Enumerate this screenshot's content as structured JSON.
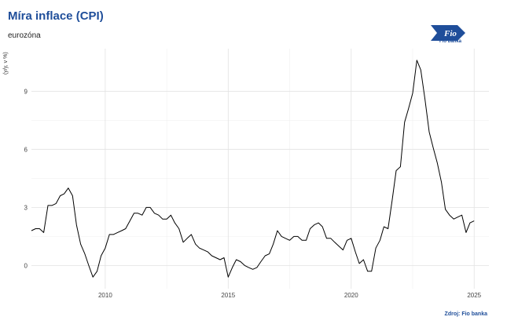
{
  "header": {
    "title": "Míra inflace (CPI)",
    "subtitle": "eurozóna"
  },
  "logo": {
    "text": "Fio",
    "caption": "Fio banka"
  },
  "footer": {
    "source": "Zdroj: Fio banka"
  },
  "chart_data": {
    "type": "line",
    "title": "Míra inflace (CPI)",
    "subtitle": "eurozóna",
    "ylabel": "(y/y, v %)",
    "xlabel": "",
    "xlim": [
      2007.0,
      2025.6
    ],
    "ylim": [
      -1.2,
      11.2
    ],
    "x_ticks": [
      2010,
      2015,
      2020,
      2025
    ],
    "y_ticks": [
      0,
      3,
      6,
      9
    ],
    "grid": true,
    "line_color": "#000000",
    "series": [
      {
        "x": [
          2007.0,
          2007.17,
          2007.33,
          2007.5,
          2007.67,
          2007.83,
          2008.0,
          2008.17,
          2008.33,
          2008.5,
          2008.67,
          2008.83,
          2009.0,
          2009.17,
          2009.33,
          2009.5,
          2009.67,
          2009.83,
          2010.0,
          2010.17,
          2010.33,
          2010.5,
          2010.67,
          2010.83,
          2011.0,
          2011.17,
          2011.33,
          2011.5,
          2011.67,
          2011.83,
          2012.0,
          2012.17,
          2012.33,
          2012.5,
          2012.67,
          2012.83,
          2013.0,
          2013.17,
          2013.33,
          2013.5,
          2013.67,
          2013.83,
          2014.0,
          2014.17,
          2014.33,
          2014.5,
          2014.67,
          2014.83,
          2015.0,
          2015.17,
          2015.33,
          2015.5,
          2015.67,
          2015.83,
          2016.0,
          2016.17,
          2016.33,
          2016.5,
          2016.67,
          2016.83,
          2017.0,
          2017.17,
          2017.33,
          2017.5,
          2017.67,
          2017.83,
          2018.0,
          2018.17,
          2018.33,
          2018.5,
          2018.67,
          2018.83,
          2019.0,
          2019.17,
          2019.33,
          2019.5,
          2019.67,
          2019.83,
          2020.0,
          2020.17,
          2020.33,
          2020.5,
          2020.67,
          2020.83,
          2021.0,
          2021.17,
          2021.33,
          2021.5,
          2021.67,
          2021.83,
          2022.0,
          2022.17,
          2022.33,
          2022.5,
          2022.67,
          2022.83,
          2023.0,
          2023.17,
          2023.33,
          2023.5,
          2023.67,
          2023.83,
          2024.0,
          2024.17,
          2024.33,
          2024.5,
          2024.67,
          2024.83,
          2025.0
        ],
        "y": [
          1.8,
          1.9,
          1.9,
          1.7,
          3.1,
          3.1,
          3.2,
          3.6,
          3.7,
          4.0,
          3.6,
          2.1,
          1.1,
          0.6,
          0.0,
          -0.6,
          -0.3,
          0.5,
          0.9,
          1.6,
          1.6,
          1.7,
          1.8,
          1.9,
          2.3,
          2.7,
          2.7,
          2.6,
          3.0,
          3.0,
          2.7,
          2.6,
          2.4,
          2.4,
          2.6,
          2.2,
          1.9,
          1.2,
          1.4,
          1.6,
          1.1,
          0.9,
          0.8,
          0.7,
          0.5,
          0.4,
          0.3,
          0.4,
          -0.6,
          -0.1,
          0.3,
          0.2,
          0.0,
          -0.1,
          -0.2,
          -0.1,
          0.2,
          0.5,
          0.6,
          1.1,
          1.8,
          1.5,
          1.4,
          1.3,
          1.5,
          1.5,
          1.3,
          1.3,
          1.9,
          2.1,
          2.2,
          2.0,
          1.4,
          1.4,
          1.2,
          1.0,
          0.8,
          1.3,
          1.4,
          0.7,
          0.1,
          0.3,
          -0.3,
          -0.3,
          0.9,
          1.3,
          2.0,
          1.9,
          3.4,
          4.9,
          5.1,
          7.4,
          8.1,
          8.9,
          10.6,
          10.1,
          8.6,
          6.9,
          6.1,
          5.3,
          4.3,
          2.9,
          2.6,
          2.4,
          2.5,
          2.6,
          1.7,
          2.2,
          2.3
        ]
      }
    ]
  }
}
